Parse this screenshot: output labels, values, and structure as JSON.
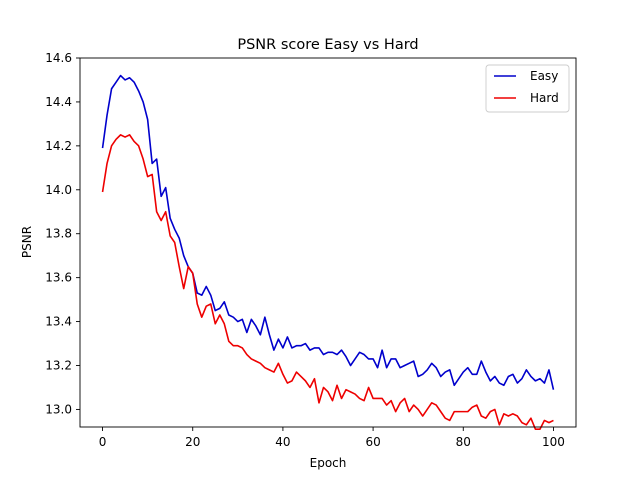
{
  "chart_data": {
    "type": "line",
    "title": "PSNR score Easy vs Hard",
    "xlabel": "Epoch",
    "ylabel": "PSNR",
    "xlim": [
      -5,
      105
    ],
    "ylim": [
      12.92,
      14.6
    ],
    "xticks": [
      0,
      20,
      40,
      60,
      80,
      100
    ],
    "yticks": [
      13.0,
      13.2,
      13.4,
      13.6,
      13.8,
      14.0,
      14.2,
      14.4,
      14.6
    ],
    "grid": false,
    "legend": "top-right",
    "series": [
      {
        "name": "Easy",
        "color": "#0000cc",
        "values": [
          14.19,
          14.34,
          14.46,
          14.49,
          14.52,
          14.5,
          14.51,
          14.49,
          14.45,
          14.4,
          14.32,
          14.12,
          14.14,
          13.97,
          14.01,
          13.87,
          13.82,
          13.78,
          13.7,
          13.65,
          13.62,
          13.53,
          13.52,
          13.56,
          13.52,
          13.45,
          13.46,
          13.49,
          13.43,
          13.42,
          13.4,
          13.41,
          13.35,
          13.41,
          13.38,
          13.34,
          13.42,
          13.34,
          13.27,
          13.32,
          13.28,
          13.33,
          13.28,
          13.29,
          13.29,
          13.3,
          13.27,
          13.28,
          13.28,
          13.25,
          13.26,
          13.26,
          13.25,
          13.27,
          13.24,
          13.2,
          13.23,
          13.26,
          13.25,
          13.23,
          13.23,
          13.19,
          13.27,
          13.19,
          13.23,
          13.23,
          13.19,
          13.2,
          13.21,
          13.22,
          13.15,
          13.16,
          13.18,
          13.21,
          13.19,
          13.15,
          13.17,
          13.18,
          13.11,
          13.14,
          13.17,
          13.19,
          13.16,
          13.16,
          13.22,
          13.17,
          13.13,
          13.15,
          13.12,
          13.11,
          13.15,
          13.16,
          13.12,
          13.14,
          13.18,
          13.15,
          13.13,
          13.14,
          13.12,
          13.18,
          13.09
        ]
      },
      {
        "name": "Hard",
        "color": "#ee0000",
        "values": [
          13.99,
          14.12,
          14.2,
          14.23,
          14.25,
          14.24,
          14.25,
          14.22,
          14.2,
          14.14,
          14.06,
          14.07,
          13.9,
          13.86,
          13.9,
          13.79,
          13.76,
          13.65,
          13.55,
          13.65,
          13.62,
          13.48,
          13.42,
          13.47,
          13.48,
          13.39,
          13.43,
          13.39,
          13.31,
          13.29,
          13.29,
          13.28,
          13.25,
          13.23,
          13.22,
          13.21,
          13.19,
          13.18,
          13.17,
          13.21,
          13.16,
          13.12,
          13.13,
          13.17,
          13.15,
          13.13,
          13.1,
          13.14,
          13.03,
          13.1,
          13.08,
          13.04,
          13.11,
          13.05,
          13.09,
          13.08,
          13.07,
          13.05,
          13.04,
          13.1,
          13.05,
          13.05,
          13.05,
          13.02,
          13.04,
          12.99,
          13.03,
          13.05,
          12.99,
          13.02,
          13.0,
          12.97,
          13.0,
          13.03,
          13.02,
          12.99,
          12.96,
          12.95,
          12.99,
          12.99,
          12.99,
          12.99,
          13.01,
          13.02,
          12.97,
          12.96,
          12.99,
          13.0,
          12.93,
          12.98,
          12.97,
          12.98,
          12.97,
          12.94,
          12.93,
          12.96,
          12.91,
          12.91,
          12.95,
          12.94,
          12.95
        ]
      }
    ]
  }
}
